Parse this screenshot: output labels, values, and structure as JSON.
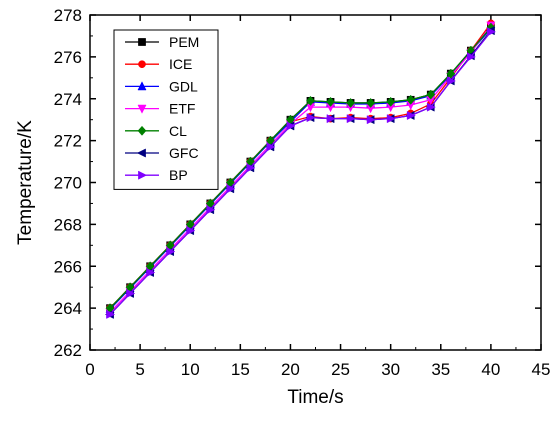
{
  "chart_data": {
    "type": "line",
    "title": "",
    "xlabel": "Time/s",
    "ylabel": "Temperature/K",
    "xlim": [
      0,
      45
    ],
    "ylim": [
      262,
      278
    ],
    "xticks": [
      0,
      5,
      10,
      15,
      20,
      25,
      30,
      35,
      40,
      45
    ],
    "yticks": [
      262,
      264,
      266,
      268,
      270,
      272,
      274,
      276,
      278
    ],
    "grid": false,
    "legend_position": "top-left",
    "x": [
      2,
      4,
      6,
      8,
      10,
      12,
      14,
      16,
      18,
      20,
      22,
      24,
      26,
      28,
      30,
      32,
      34,
      36,
      38,
      40
    ],
    "series": [
      {
        "name": "PEM",
        "color": "#000000",
        "marker": "square",
        "values": [
          264.0,
          265.0,
          266.0,
          267.0,
          268.0,
          269.0,
          270.0,
          271.0,
          272.0,
          273.0,
          273.9,
          273.85,
          273.8,
          273.8,
          273.85,
          273.95,
          274.2,
          275.2,
          276.3,
          277.4
        ]
      },
      {
        "name": "ICE",
        "color": "#ff0000",
        "marker": "circle",
        "values": [
          264.0,
          265.0,
          266.0,
          267.0,
          268.0,
          269.0,
          270.0,
          271.0,
          272.0,
          272.9,
          273.15,
          273.05,
          273.1,
          273.05,
          273.1,
          273.3,
          273.75,
          275.0,
          276.3,
          277.6
        ]
      },
      {
        "name": "GDL",
        "color": "#0000ff",
        "marker": "triangle-up",
        "values": [
          263.95,
          264.95,
          265.95,
          266.95,
          267.95,
          268.95,
          269.95,
          270.95,
          271.95,
          272.9,
          273.85,
          273.8,
          273.75,
          273.75,
          273.8,
          273.9,
          274.15,
          275.15,
          276.25,
          277.35
        ]
      },
      {
        "name": "ETF",
        "color": "#ff00ff",
        "marker": "triangle-down",
        "values": [
          263.8,
          264.8,
          265.8,
          266.8,
          267.8,
          268.8,
          269.8,
          270.8,
          271.8,
          272.8,
          273.6,
          273.6,
          273.6,
          273.55,
          273.6,
          273.7,
          273.95,
          275.1,
          276.2,
          277.5
        ]
      },
      {
        "name": "CL",
        "color": "#008000",
        "marker": "diamond",
        "values": [
          264.0,
          265.0,
          266.0,
          267.0,
          268.0,
          269.0,
          270.0,
          271.0,
          272.0,
          273.0,
          273.9,
          273.85,
          273.8,
          273.8,
          273.85,
          273.95,
          274.2,
          275.2,
          276.3,
          277.4
        ]
      },
      {
        "name": "GFC",
        "color": "#000080",
        "marker": "triangle-left",
        "values": [
          263.7,
          264.7,
          265.7,
          266.7,
          267.7,
          268.7,
          269.7,
          270.7,
          271.7,
          272.7,
          273.1,
          273.05,
          273.05,
          273.0,
          273.05,
          273.2,
          273.6,
          274.85,
          276.05,
          277.25
        ]
      },
      {
        "name": "BP",
        "color": "#8000ff",
        "marker": "triangle-right",
        "values": [
          263.7,
          264.7,
          265.7,
          266.7,
          267.7,
          268.7,
          269.7,
          270.7,
          271.7,
          272.7,
          273.1,
          273.05,
          273.05,
          273.0,
          273.05,
          273.2,
          273.6,
          274.85,
          276.0,
          277.2
        ]
      }
    ]
  }
}
